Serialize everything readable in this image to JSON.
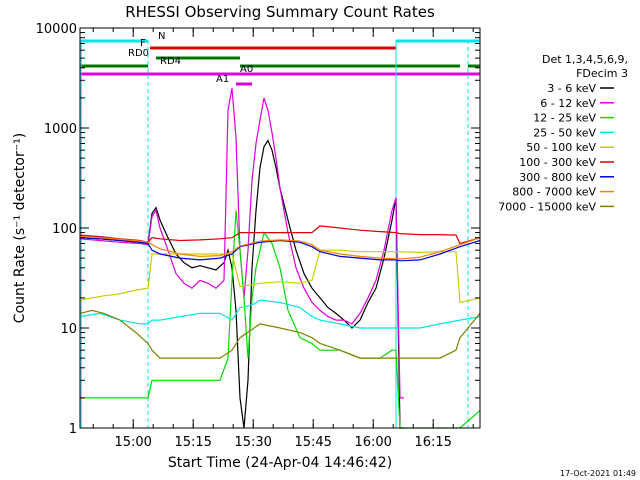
{
  "chart_data": {
    "type": "line",
    "title": "RHESSI Observing Summary Count Rates",
    "xlabel": "Start Time (24-Apr-04 14:46:42)",
    "ylabel": "Count Rate (s⁻¹ detector⁻¹)",
    "yscale": "log",
    "ylim": [
      1,
      10000
    ],
    "xlim_minutes": [
      0,
      100
    ],
    "x_ticks": [
      "15:00",
      "15:15",
      "15:30",
      "15:45",
      "16:00",
      "16:15"
    ],
    "y_ticks": [
      "1",
      "10",
      "100",
      "1000",
      "10000"
    ],
    "footer_date": "17-Oct-2021 01:49",
    "legend_title": [
      "Det 1,3,4,5,6,9,",
      "FDecim 3"
    ],
    "legend_placement": "right",
    "flags": [
      {
        "label": "N",
        "color": "#00e5e5",
        "segments": [
          [
            0,
            17
          ],
          [
            79,
            100
          ]
        ]
      },
      {
        "label": "F",
        "color": "#dd0000",
        "segments": [
          [
            17.5,
            79
          ]
        ]
      },
      {
        "label": "RD0",
        "color": "#007700",
        "segments": [
          [
            19,
            40
          ]
        ]
      },
      {
        "label": "RD4",
        "color": "#007700",
        "segments": [
          [
            0,
            17
          ],
          [
            40,
            58
          ],
          [
            58,
            95
          ],
          [
            97,
            100
          ]
        ]
      },
      {
        "label": "A0",
        "color": "#dd00dd",
        "segments": [
          [
            0,
            100
          ]
        ]
      },
      {
        "label": "A1",
        "color": "#dd00dd",
        "segments": [
          [
            39,
            43
          ]
        ]
      }
    ],
    "series": [
      {
        "name": "3 - 6 keV",
        "color": "#000000",
        "x": [
          0,
          5,
          10,
          15,
          17,
          18,
          19,
          20,
          22,
          24,
          26,
          28,
          30,
          32,
          34,
          36,
          37,
          38,
          39,
          40,
          41,
          42,
          43,
          44,
          45,
          46,
          47,
          48,
          49,
          50,
          52,
          54,
          56,
          58,
          60,
          62,
          64,
          66,
          68,
          70,
          72,
          74,
          76,
          78,
          79,
          80,
          81
        ],
        "y": [
          80,
          78,
          75,
          72,
          70,
          140,
          160,
          120,
          80,
          55,
          45,
          40,
          42,
          40,
          38,
          45,
          60,
          40,
          15,
          2,
          1,
          3,
          40,
          150,
          400,
          650,
          750,
          600,
          400,
          250,
          120,
          60,
          35,
          25,
          20,
          16,
          14,
          12,
          10,
          12,
          18,
          25,
          50,
          120,
          200,
          1,
          1
        ]
      },
      {
        "name": "6 - 12 keV",
        "color": "#dd00dd",
        "x": [
          0,
          5,
          10,
          15,
          17,
          18,
          19,
          20,
          22,
          24,
          26,
          28,
          30,
          32,
          34,
          36,
          37,
          38,
          39,
          40,
          41,
          42,
          43,
          44,
          45,
          46,
          47,
          48,
          49,
          50,
          52,
          54,
          56,
          58,
          60,
          62,
          64,
          66,
          68,
          70,
          72,
          74,
          76,
          78,
          79,
          80,
          81
        ],
        "y": [
          78,
          75,
          72,
          70,
          68,
          130,
          150,
          100,
          60,
          35,
          28,
          25,
          30,
          28,
          25,
          30,
          1500,
          2500,
          800,
          60,
          20,
          60,
          300,
          700,
          1200,
          2000,
          1500,
          900,
          500,
          250,
          90,
          40,
          25,
          18,
          15,
          13,
          12,
          12,
          11,
          14,
          20,
          30,
          60,
          150,
          200,
          2,
          2
        ]
      },
      {
        "name": "12 - 25 keV",
        "color": "#00dd00",
        "x": [
          0,
          5,
          10,
          15,
          17,
          18,
          20,
          25,
          30,
          35,
          37,
          38,
          39,
          40,
          41,
          42,
          43,
          44,
          45,
          46,
          48,
          50,
          52,
          55,
          58,
          60,
          65,
          70,
          75,
          78,
          79,
          80,
          85,
          90,
          95,
          100
        ],
        "y": [
          2,
          2,
          2,
          2,
          2,
          3,
          3,
          3,
          3,
          3,
          5,
          30,
          150,
          60,
          20,
          5,
          20,
          40,
          60,
          90,
          70,
          40,
          15,
          8,
          7,
          6,
          6,
          5,
          5,
          6,
          6,
          1,
          1,
          1,
          1,
          1.5
        ]
      },
      {
        "name": "25 - 50 keV",
        "color": "#00e5e5",
        "x": [
          0,
          5,
          10,
          15,
          17,
          18,
          20,
          25,
          30,
          35,
          38,
          40,
          43,
          45,
          50,
          55,
          58,
          60,
          65,
          70,
          75,
          79,
          80,
          85,
          90,
          95,
          100
        ],
        "y": [
          13,
          14,
          12,
          11,
          11,
          12,
          12,
          13,
          14,
          14,
          12,
          16,
          17,
          19,
          18,
          16,
          13,
          12,
          11,
          10,
          10,
          10,
          10,
          10,
          11,
          12,
          13
        ]
      },
      {
        "name": "50 - 100 keV",
        "color": "#cccc00",
        "x": [
          0,
          3,
          6,
          10,
          14,
          17,
          18,
          20,
          25,
          30,
          35,
          38,
          40,
          43,
          45,
          50,
          55,
          58,
          60,
          65,
          70,
          75,
          79,
          80,
          85,
          90,
          94,
          95,
          100
        ],
        "y": [
          19,
          20,
          21,
          22,
          24,
          25,
          55,
          55,
          55,
          55,
          55,
          55,
          26,
          27,
          28,
          29,
          28,
          30,
          60,
          60,
          58,
          58,
          58,
          58,
          57,
          58,
          58,
          18,
          20
        ]
      },
      {
        "name": "100 - 300 keV",
        "color": "#dd0000",
        "x": [
          0,
          5,
          10,
          15,
          17,
          18,
          20,
          25,
          30,
          35,
          38,
          40,
          45,
          50,
          55,
          58,
          60,
          65,
          70,
          75,
          79,
          80,
          85,
          90,
          94,
          95,
          100
        ],
        "y": [
          85,
          82,
          78,
          75,
          72,
          80,
          78,
          75,
          76,
          78,
          80,
          90,
          90,
          90,
          90,
          90,
          105,
          100,
          95,
          92,
          90,
          88,
          86,
          86,
          85,
          70,
          80
        ]
      },
      {
        "name": "300 - 800 keV",
        "color": "#0000dd",
        "x": [
          0,
          5,
          10,
          15,
          17,
          18,
          20,
          25,
          30,
          35,
          38,
          40,
          45,
          50,
          55,
          58,
          60,
          65,
          70,
          75,
          79,
          80,
          85,
          90,
          95,
          100
        ],
        "y": [
          80,
          78,
          75,
          72,
          70,
          60,
          55,
          50,
          48,
          50,
          55,
          65,
          72,
          75,
          72,
          65,
          58,
          52,
          50,
          48,
          48,
          47,
          48,
          55,
          65,
          75
        ]
      },
      {
        "name": "800 - 7000 keV",
        "color": "#ff7f00",
        "x": [
          0,
          5,
          10,
          15,
          17,
          20,
          25,
          30,
          35,
          38,
          40,
          45,
          50,
          55,
          58,
          60,
          65,
          70,
          75,
          80,
          85,
          90,
          95,
          100
        ],
        "y": [
          82,
          80,
          77,
          74,
          72,
          62,
          55,
          52,
          53,
          58,
          66,
          74,
          76,
          74,
          68,
          60,
          55,
          52,
          50,
          49,
          51,
          58,
          68,
          80
        ]
      },
      {
        "name": "7000 - 15000 keV",
        "color": "#808000",
        "x": [
          0,
          3,
          6,
          10,
          14,
          17,
          18,
          20,
          25,
          30,
          35,
          38,
          40,
          45,
          50,
          55,
          58,
          60,
          65,
          70,
          75,
          79,
          80,
          85,
          90,
          94,
          95,
          100
        ],
        "y": [
          14,
          15,
          14,
          12,
          9,
          7,
          6,
          5,
          5,
          5,
          5,
          6,
          8,
          11,
          10,
          9,
          8,
          7,
          6,
          5,
          5,
          5,
          5,
          5,
          5,
          6,
          8,
          14
        ]
      }
    ]
  }
}
